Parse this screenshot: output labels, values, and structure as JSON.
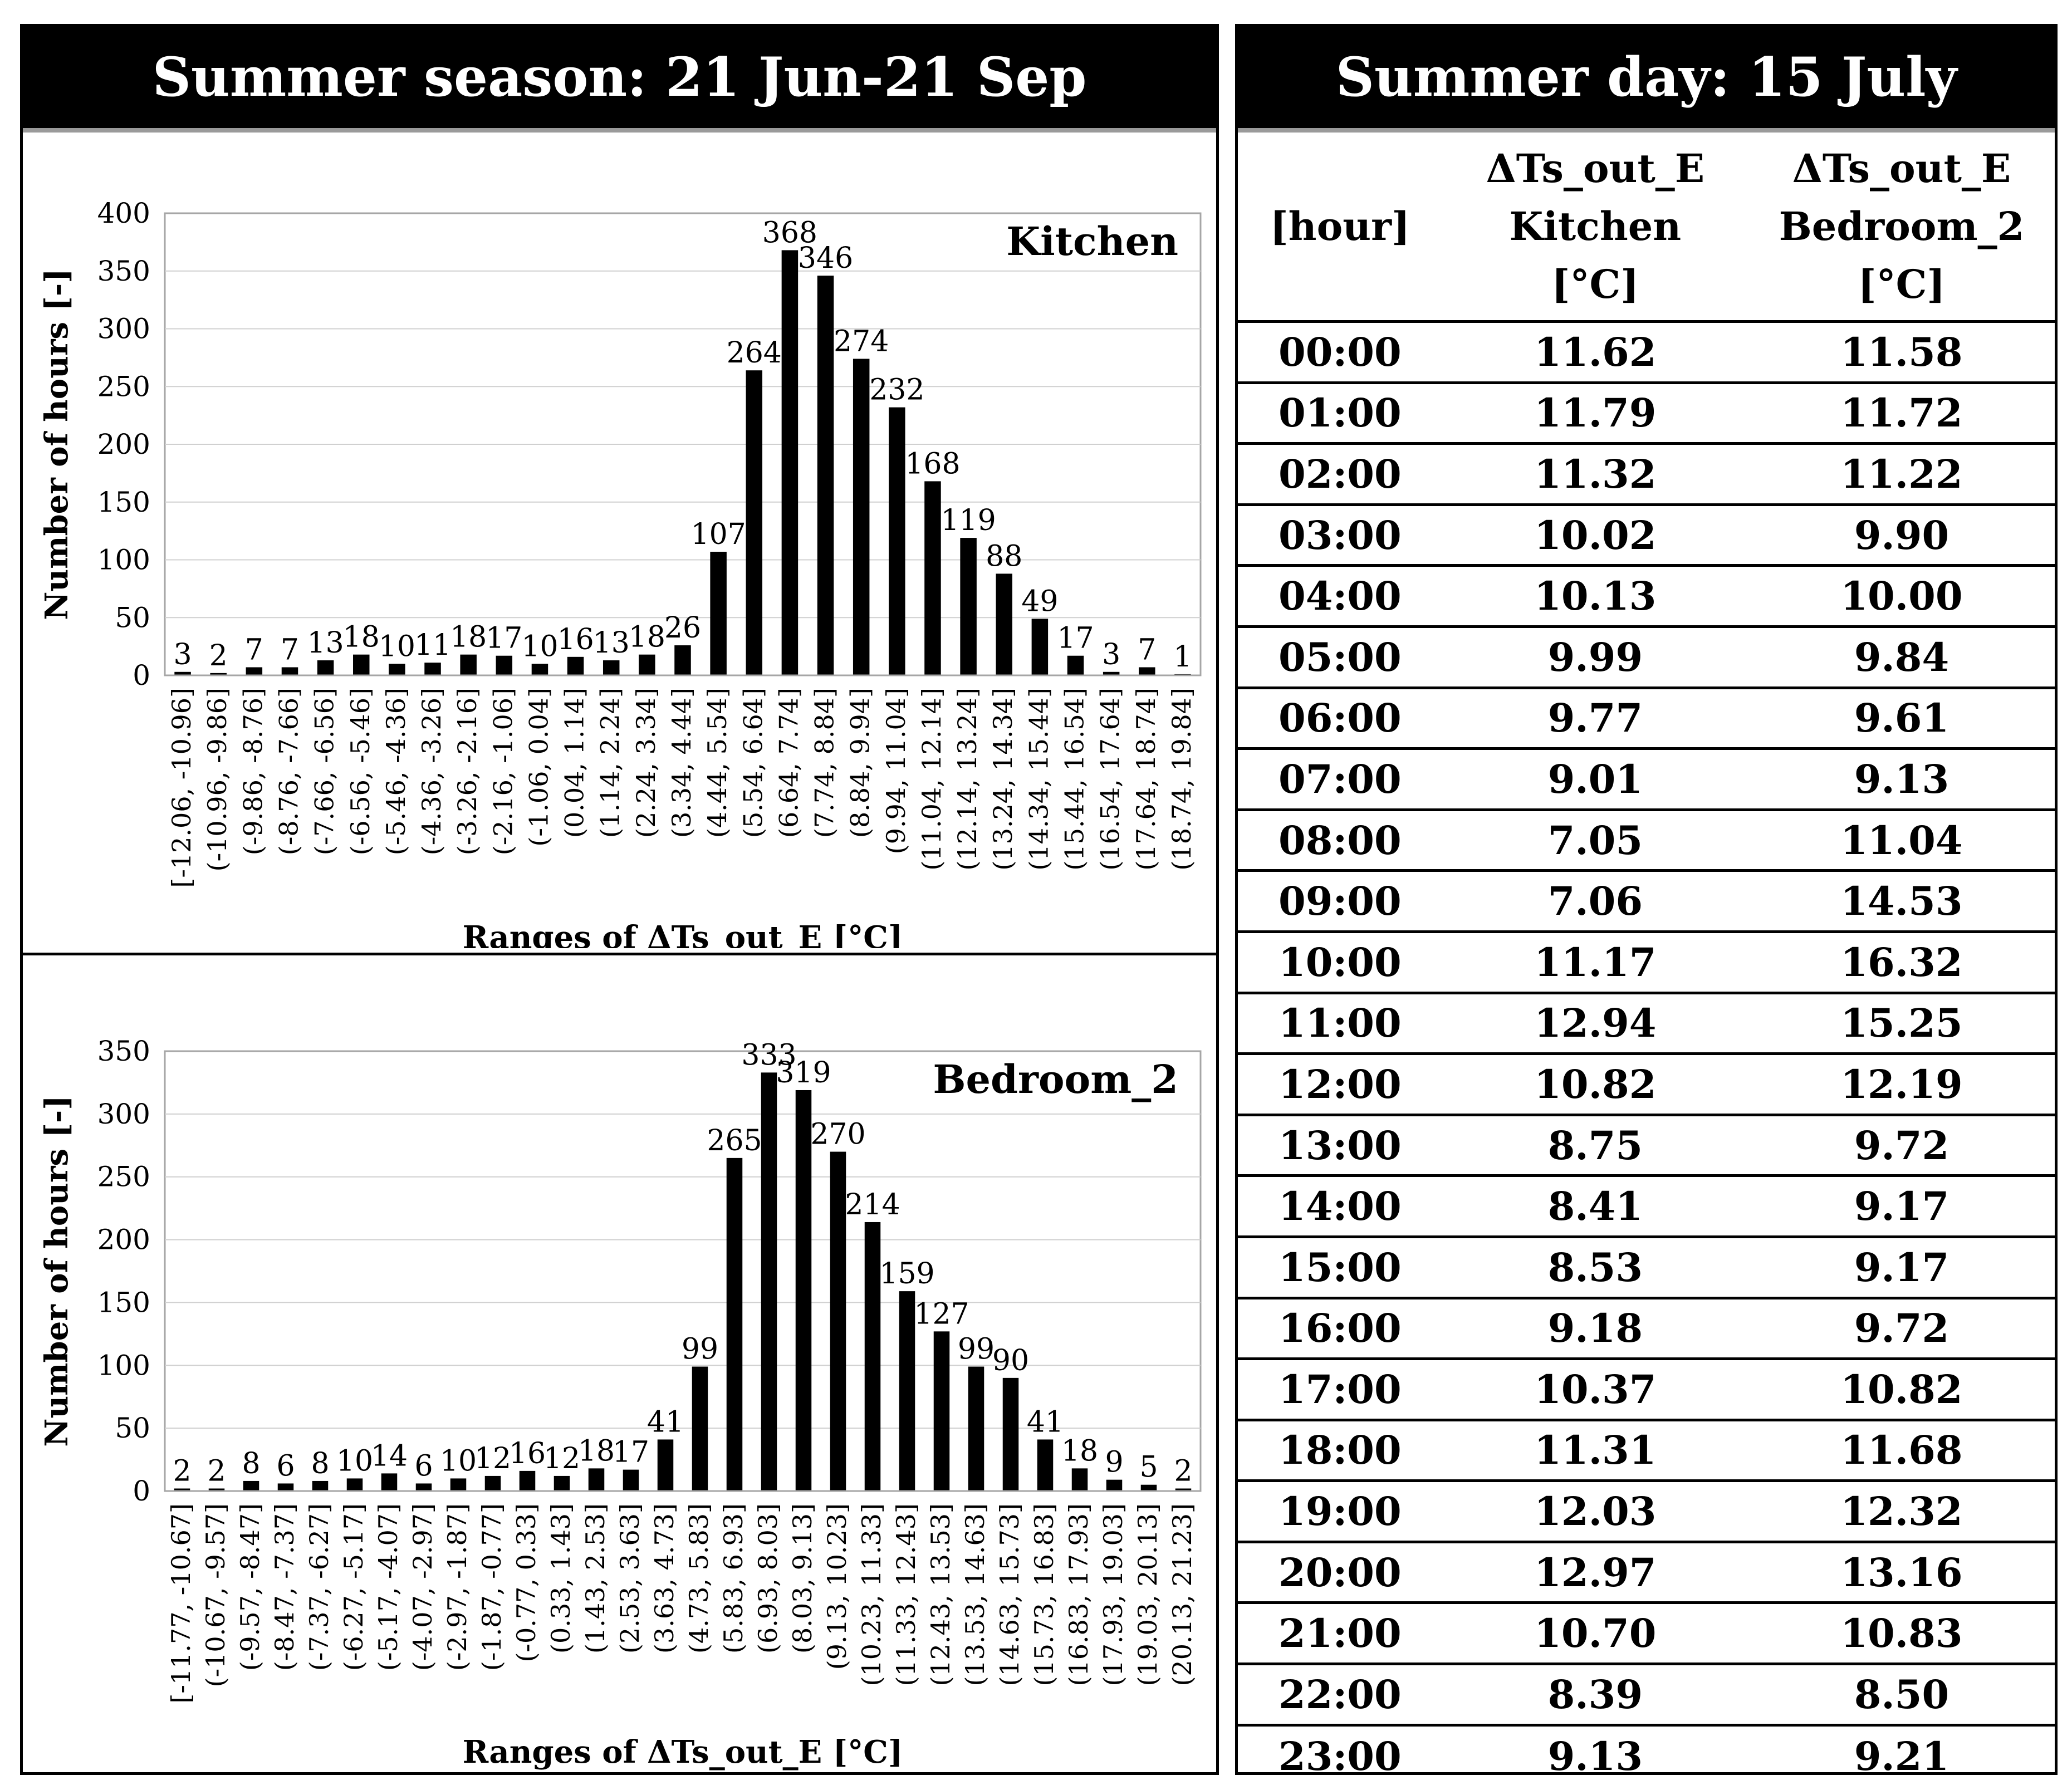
{
  "left_header": "Summer season: 21 Jun-21 Sep",
  "right_header": "Summer day: 15 July",
  "chart_data": [
    {
      "type": "bar",
      "title": "Kitchen",
      "xlabel": "Ranges of ΔTs_out_E [°C]",
      "ylabel": "Number of hours [-]",
      "ylim": [
        0,
        400
      ],
      "yticks": [
        0,
        50,
        100,
        150,
        200,
        250,
        300,
        350,
        400
      ],
      "grid": true,
      "categories": [
        "[-12.06, -10.96]",
        "(-10.96, -9.86]",
        "(-9.86, -8.76]",
        "(-8.76, -7.66]",
        "(-7.66, -6.56]",
        "(-6.56, -5.46]",
        "(-5.46, -4.36]",
        "(-4.36, -3.26]",
        "(-3.26, -2.16]",
        "(-2.16, -1.06]",
        "(-1.06, 0.04]",
        "(0.04, 1.14]",
        "(1.14, 2.24]",
        "(2.24, 3.34]",
        "(3.34, 4.44]",
        "(4.44, 5.54]",
        "(5.54, 6.64]",
        "(6.64, 7.74]",
        "(7.74, 8.84]",
        "(8.84, 9.94]",
        "(9.94, 11.04]",
        "(11.04, 12.14]",
        "(12.14, 13.24]",
        "(13.24, 14.34]",
        "(14.34, 15.44]",
        "(15.44, 16.54]",
        "(16.54, 17.64]",
        "(17.64, 18.74]",
        "(18.74, 19.84]"
      ],
      "values": [
        3,
        2,
        7,
        7,
        13,
        18,
        10,
        11,
        18,
        17,
        10,
        16,
        13,
        18,
        26,
        107,
        264,
        368,
        346,
        274,
        232,
        168,
        119,
        88,
        49,
        17,
        3,
        7,
        1
      ]
    },
    {
      "type": "bar",
      "title": "Bedroom_2",
      "xlabel": "Ranges of ΔTs_out_E [°C]",
      "ylabel": "Number of hours [-]",
      "ylim": [
        0,
        350
      ],
      "yticks": [
        0,
        50,
        100,
        150,
        200,
        250,
        300,
        350
      ],
      "grid": true,
      "categories": [
        "[-11.77, -10.67]",
        "(-10.67, -9.57]",
        "(-9.57, -8.47]",
        "(-8.47, -7.37]",
        "(-7.37, -6.27]",
        "(-6.27, -5.17]",
        "(-5.17, -4.07]",
        "(-4.07, -2.97]",
        "(-2.97, -1.87]",
        "(-1.87, -0.77]",
        "(-0.77, 0.33]",
        "(0.33, 1.43]",
        "(1.43, 2.53]",
        "(2.53, 3.63]",
        "(3.63, 4.73]",
        "(4.73, 5.83]",
        "(5.83, 6.93]",
        "(6.93, 8.03]",
        "(8.03, 9.13]",
        "(9.13, 10.23]",
        "(10.23, 11.33]",
        "(11.33, 12.43]",
        "(12.43, 13.53]",
        "(13.53, 14.63]",
        "(14.63, 15.73]",
        "(15.73, 16.83]",
        "(16.83, 17.93]",
        "(17.93, 19.03]",
        "(19.03, 20.13]",
        "(20.13, 21.23]"
      ],
      "values": [
        2,
        2,
        8,
        6,
        8,
        10,
        14,
        6,
        10,
        12,
        16,
        12,
        18,
        17,
        41,
        99,
        265,
        333,
        319,
        270,
        214,
        159,
        127,
        99,
        90,
        41,
        18,
        9,
        5,
        2
      ]
    }
  ],
  "table": {
    "columns": [
      {
        "lines": [
          "[hour]"
        ]
      },
      {
        "lines": [
          "ΔTs_out_E",
          "Kitchen",
          "[°C]"
        ]
      },
      {
        "lines": [
          "ΔTs_out_E",
          "Bedroom_2",
          "[°C]"
        ]
      }
    ],
    "rows": [
      [
        "00:00",
        "11.62",
        "11.58"
      ],
      [
        "01:00",
        "11.79",
        "11.72"
      ],
      [
        "02:00",
        "11.32",
        "11.22"
      ],
      [
        "03:00",
        "10.02",
        "9.90"
      ],
      [
        "04:00",
        "10.13",
        "10.00"
      ],
      [
        "05:00",
        "9.99",
        "9.84"
      ],
      [
        "06:00",
        "9.77",
        "9.61"
      ],
      [
        "07:00",
        "9.01",
        "9.13"
      ],
      [
        "08:00",
        "7.05",
        "11.04"
      ],
      [
        "09:00",
        "7.06",
        "14.53"
      ],
      [
        "10:00",
        "11.17",
        "16.32"
      ],
      [
        "11:00",
        "12.94",
        "15.25"
      ],
      [
        "12:00",
        "10.82",
        "12.19"
      ],
      [
        "13:00",
        "8.75",
        "9.72"
      ],
      [
        "14:00",
        "8.41",
        "9.17"
      ],
      [
        "15:00",
        "8.53",
        "9.17"
      ],
      [
        "16:00",
        "9.18",
        "9.72"
      ],
      [
        "17:00",
        "10.37",
        "10.82"
      ],
      [
        "18:00",
        "11.31",
        "11.68"
      ],
      [
        "19:00",
        "12.03",
        "12.32"
      ],
      [
        "20:00",
        "12.97",
        "13.16"
      ],
      [
        "21:00",
        "10.70",
        "10.83"
      ],
      [
        "22:00",
        "8.39",
        "8.50"
      ],
      [
        "23:00",
        "9.13",
        "9.21"
      ]
    ]
  }
}
